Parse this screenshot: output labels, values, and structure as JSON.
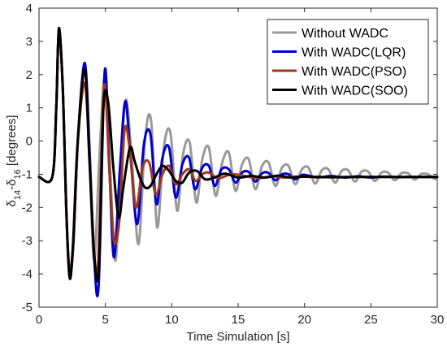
{
  "chart_data": {
    "type": "line",
    "xlabel": "Time Simulation [s]",
    "ylabel": "δ14-δ16 [degrees]",
    "ylabel_parts": {
      "base": "δ",
      "sub1": "14",
      "mid": "-δ",
      "sub2": "16",
      "tail": " [degrees]"
    },
    "xlim": [
      0,
      30
    ],
    "ylim": [
      -5,
      4
    ],
    "xticks": [
      0,
      5,
      10,
      15,
      20,
      25,
      30
    ],
    "yticks": [
      4,
      3,
      2,
      1,
      0,
      -1,
      -2,
      -3,
      -4,
      -5
    ],
    "grid": false,
    "box": true,
    "legend_position": "top-right",
    "series": [
      {
        "name": "Without WADC",
        "color": "#999999",
        "x": [
          0,
          1,
          1.3,
          1.5,
          1.8,
          2.05,
          2.3,
          2.6,
          2.95,
          3.45,
          3.8,
          4.15,
          4.55,
          4.95,
          5.35,
          5.75,
          6.15,
          6.55,
          7.0,
          7.5,
          8.0,
          8.45,
          8.9,
          9.4,
          9.9,
          10.4,
          10.85,
          11.35,
          11.85,
          12.3,
          12.8,
          13.3,
          13.8,
          14.3,
          14.8,
          15.3,
          15.8,
          16.3,
          16.8,
          17.3,
          17.8,
          18.3,
          18.8,
          19.3,
          19.8,
          20.3,
          20.8,
          21.3,
          21.8,
          22.3,
          22.8,
          23.3,
          23.8,
          24.3,
          24.8,
          25.3,
          25.8,
          26.3,
          26.8,
          27.3,
          27.8,
          28.3,
          28.8,
          29.3,
          29.8,
          30
        ],
        "y": [
          -1.08,
          -1.08,
          1.0,
          3.35,
          1.5,
          -2.0,
          -4.05,
          -3.0,
          0.2,
          2.3,
          -0.3,
          -3.6,
          -0.5,
          1.9,
          -0.8,
          -3.6,
          -0.8,
          1.25,
          -0.6,
          -3.1,
          0.1,
          0.6,
          -2.6,
          -0.2,
          0.25,
          -2.1,
          -0.4,
          -0.05,
          -1.85,
          -0.55,
          -0.2,
          -1.65,
          -0.65,
          -0.35,
          -1.5,
          -0.7,
          -0.55,
          -1.45,
          -0.75,
          -0.65,
          -1.35,
          -0.8,
          -0.75,
          -1.3,
          -0.85,
          -0.8,
          -1.28,
          -0.88,
          -0.85,
          -1.25,
          -0.9,
          -0.88,
          -1.22,
          -0.92,
          -0.92,
          -1.2,
          -0.95,
          -0.95,
          -1.18,
          -0.97,
          -0.97,
          -1.16,
          -0.99,
          -1.0,
          -1.14,
          -1.08
        ]
      },
      {
        "name": "With WADC(LQR)",
        "color": "#0000cc",
        "x": [
          0,
          1,
          1.3,
          1.5,
          1.8,
          2.05,
          2.3,
          2.6,
          2.95,
          3.45,
          3.8,
          4.15,
          4.5,
          4.95,
          5.3,
          5.65,
          6.1,
          6.5,
          6.9,
          7.4,
          7.9,
          8.4,
          8.85,
          9.3,
          9.8,
          10.3,
          10.8,
          11.3,
          11.75,
          12.3,
          12.8,
          13.25,
          13.75,
          14.3,
          14.8,
          15.3,
          15.8,
          16.3,
          16.8,
          17.3,
          17.8,
          18.3,
          18.8,
          19.3,
          19.8,
          20.3,
          21.0,
          22.0,
          23.0,
          24.0,
          25.0,
          26.0,
          27.0,
          28.0,
          29.0,
          30
        ],
        "y": [
          -1.08,
          -1.08,
          1.0,
          3.35,
          1.5,
          -2.0,
          -4.05,
          -3.0,
          0.2,
          2.35,
          -0.2,
          -3.5,
          -4.3,
          2.1,
          -0.8,
          -3.5,
          -0.8,
          1.2,
          -0.5,
          -2.5,
          -0.1,
          0.2,
          -1.9,
          -0.5,
          -0.2,
          -1.7,
          -0.7,
          -0.5,
          -1.45,
          -0.8,
          -0.75,
          -1.35,
          -0.85,
          -0.85,
          -1.25,
          -0.95,
          -0.93,
          -1.22,
          -0.97,
          -0.96,
          -1.18,
          -1.0,
          -1.0,
          -1.15,
          -1.02,
          -1.04,
          -1.1,
          -1.05,
          -1.1,
          -1.06,
          -1.1,
          -1.07,
          -1.09,
          -1.08,
          -1.08,
          -1.08
        ]
      },
      {
        "name": "With WADC(PSO)",
        "color": "#a0381a",
        "x": [
          0,
          1,
          1.3,
          1.5,
          1.8,
          2.05,
          2.3,
          2.6,
          2.95,
          3.45,
          3.8,
          4.15,
          4.45,
          4.9,
          5.3,
          5.65,
          6.05,
          6.45,
          6.85,
          7.3,
          7.8,
          8.3,
          8.8,
          9.3,
          9.8,
          10.3,
          10.8,
          11.3,
          11.8,
          12.3,
          12.8,
          13.5,
          14.5,
          15.5,
          16.5,
          17.5,
          18.5,
          19.5,
          21.0,
          23.0,
          25.0,
          27.0,
          29.0,
          30
        ],
        "y": [
          -1.08,
          -1.08,
          1.0,
          3.35,
          1.5,
          -2.0,
          -3.9,
          -2.9,
          0.1,
          1.75,
          -0.5,
          -3.3,
          -3.7,
          1.65,
          -0.9,
          -3.0,
          -2.4,
          0.35,
          -0.3,
          -2.0,
          -0.8,
          -0.65,
          -1.6,
          -1.0,
          -0.75,
          -1.3,
          -1.0,
          -0.85,
          -1.2,
          -1.0,
          -0.95,
          -1.12,
          -1.0,
          -1.05,
          -1.12,
          -1.06,
          -1.1,
          -1.07,
          -1.09,
          -1.08,
          -1.08,
          -1.08,
          -1.08,
          -1.08
        ]
      },
      {
        "name": "With WADC(SOO)",
        "color": "#000000",
        "x": [
          0,
          1,
          1.3,
          1.5,
          1.8,
          2.05,
          2.3,
          2.55,
          2.9,
          3.45,
          3.8,
          4.15,
          4.5,
          4.85,
          5.2,
          5.6,
          6.0,
          6.35,
          6.85,
          7.2,
          7.6,
          8.0,
          8.4,
          8.85,
          9.3,
          9.8,
          10.3,
          10.8,
          11.3,
          11.9,
          12.5,
          13.2,
          14.0,
          15.0,
          16.0,
          17.0,
          18.0,
          19.0,
          20.0,
          22.0,
          24.0,
          26.0,
          28.0,
          30
        ],
        "y": [
          -1.08,
          -1.08,
          1.0,
          3.4,
          1.5,
          -2.0,
          -4.1,
          -3.2,
          -0.1,
          2.15,
          -0.6,
          -3.4,
          -3.9,
          1.0,
          1.2,
          -0.8,
          -2.3,
          -1.4,
          -0.2,
          -0.6,
          -1.1,
          -1.4,
          -1.35,
          -1.0,
          -0.75,
          -0.9,
          -1.2,
          -1.25,
          -0.95,
          -0.9,
          -1.15,
          -1.1,
          -0.98,
          -1.1,
          -1.05,
          -1.1,
          -1.04,
          -1.1,
          -1.07,
          -1.09,
          -1.08,
          -1.08,
          -1.08,
          -1.08
        ]
      }
    ]
  }
}
